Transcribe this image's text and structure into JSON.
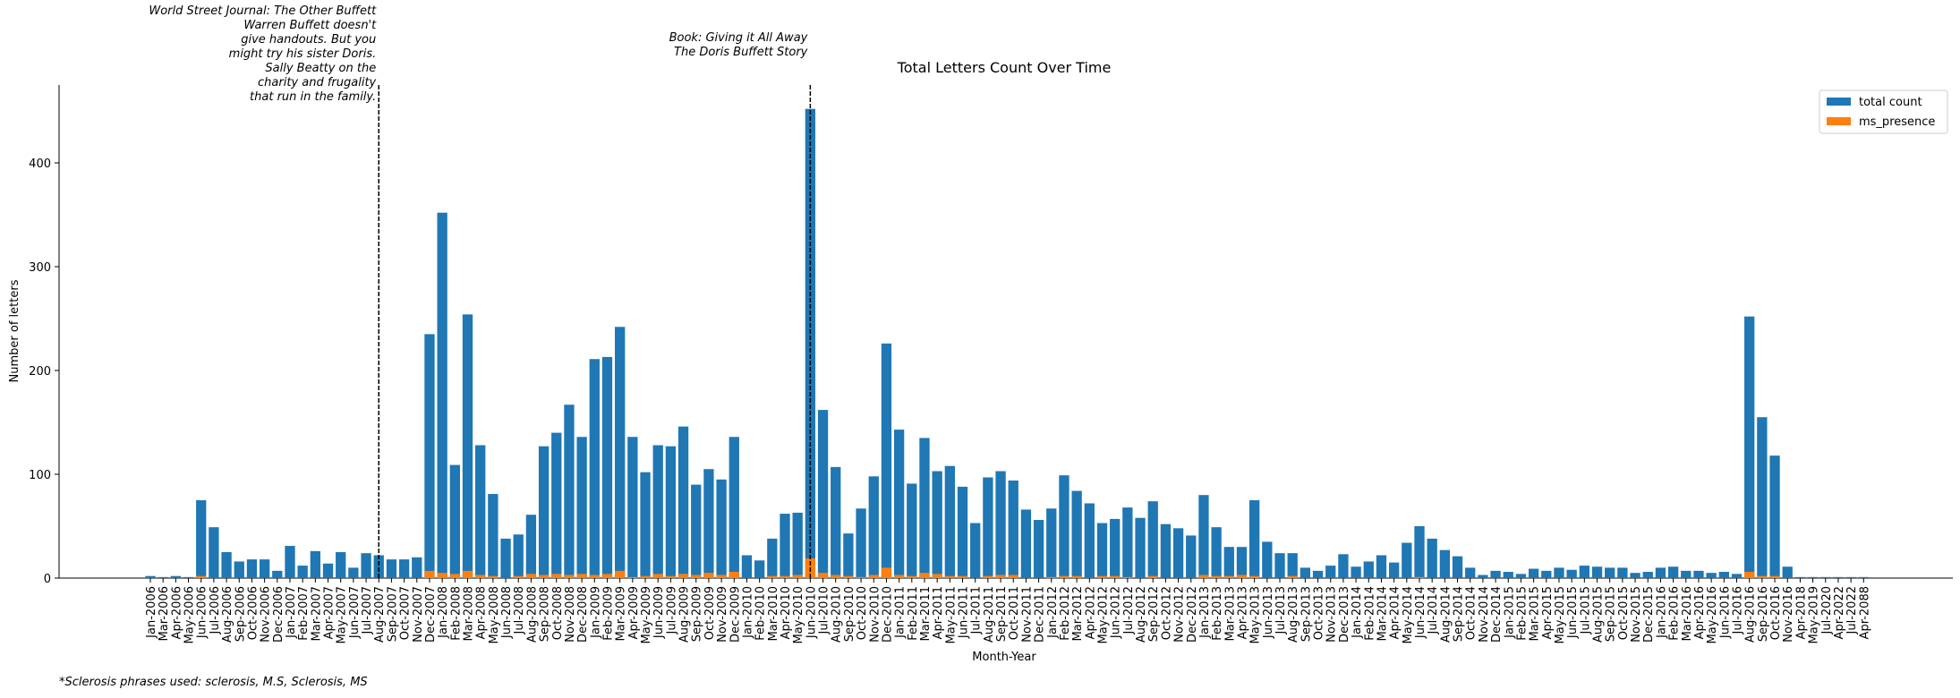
{
  "chart_data": {
    "type": "bar",
    "title": "Total Letters Count Over Time",
    "x_label": "Month-Year",
    "y_label": "Number of letters",
    "footnote": "*Sclerosis phrases used: sclerosis, M.S, Sclerosis, MS",
    "legend": "upper right",
    "categories": [
      "Jan-2006",
      "Mar-2006",
      "Apr-2006",
      "May-2006",
      "Jun-2006",
      "Jul-2006",
      "Aug-2006",
      "Sep-2006",
      "Oct-2006",
      "Nov-2006",
      "Dec-2006",
      "Jan-2007",
      "Feb-2007",
      "Mar-2007",
      "Apr-2007",
      "May-2007",
      "Jun-2007",
      "Jul-2007",
      "Aug-2007",
      "Sep-2007",
      "Oct-2007",
      "Nov-2007",
      "Dec-2007",
      "Jan-2008",
      "Feb-2008",
      "Mar-2008",
      "Apr-2008",
      "May-2008",
      "Jun-2008",
      "Jul-2008",
      "Aug-2008",
      "Sep-2008",
      "Oct-2008",
      "Nov-2008",
      "Dec-2008",
      "Jan-2009",
      "Feb-2009",
      "Mar-2009",
      "Apr-2009",
      "May-2009",
      "Jun-2009",
      "Jul-2009",
      "Aug-2009",
      "Sep-2009",
      "Oct-2009",
      "Nov-2009",
      "Dec-2009",
      "Jan-2010",
      "Feb-2010",
      "Mar-2010",
      "Apr-2010",
      "May-2010",
      "Jun-2010",
      "Jul-2010",
      "Aug-2010",
      "Sep-2010",
      "Oct-2010",
      "Nov-2010",
      "Dec-2010",
      "Jan-2011",
      "Feb-2011",
      "Mar-2011",
      "Apr-2011",
      "May-2011",
      "Jun-2011",
      "Jul-2011",
      "Aug-2011",
      "Sep-2011",
      "Oct-2011",
      "Nov-2011",
      "Dec-2011",
      "Jan-2012",
      "Feb-2012",
      "Mar-2012",
      "Apr-2012",
      "May-2012",
      "Jun-2012",
      "Jul-2012",
      "Aug-2012",
      "Sep-2012",
      "Oct-2012",
      "Nov-2012",
      "Dec-2012",
      "Jan-2013",
      "Feb-2013",
      "Mar-2013",
      "Apr-2013",
      "May-2013",
      "Jun-2013",
      "Jul-2013",
      "Aug-2013",
      "Sep-2013",
      "Oct-2013",
      "Nov-2013",
      "Dec-2013",
      "Jan-2014",
      "Feb-2014",
      "Mar-2014",
      "Apr-2014",
      "May-2014",
      "Jun-2014",
      "Jul-2014",
      "Aug-2014",
      "Sep-2014",
      "Oct-2014",
      "Nov-2014",
      "Dec-2014",
      "Jan-2015",
      "Feb-2015",
      "Mar-2015",
      "Apr-2015",
      "May-2015",
      "Jun-2015",
      "Jul-2015",
      "Aug-2015",
      "Sep-2015",
      "Oct-2015",
      "Nov-2015",
      "Dec-2015",
      "Jan-2016",
      "Feb-2016",
      "Mar-2016",
      "Apr-2016",
      "May-2016",
      "Jun-2016",
      "Jul-2016",
      "Aug-2016",
      "Sep-2016",
      "Oct-2016",
      "Nov-2016",
      "Apr-2018",
      "May-2019",
      "Jul-2020",
      "Apr-2022",
      "Jul-2022",
      "Apr-2088"
    ],
    "series": [
      {
        "name": "total count",
        "color": "#1f77b4",
        "values": [
          2,
          1,
          2,
          1,
          75,
          49,
          25,
          16,
          18,
          18,
          7,
          31,
          12,
          26,
          14,
          25,
          10,
          24,
          22,
          18,
          18,
          20,
          235,
          352,
          109,
          254,
          128,
          81,
          38,
          42,
          61,
          127,
          140,
          167,
          136,
          211,
          213,
          242,
          136,
          102,
          128,
          127,
          146,
          90,
          105,
          95,
          136,
          22,
          17,
          38,
          62,
          63,
          452,
          162,
          107,
          43,
          67,
          98,
          226,
          143,
          91,
          135,
          103,
          108,
          88,
          53,
          97,
          103,
          94,
          66,
          56,
          67,
          99,
          84,
          72,
          53,
          57,
          68,
          58,
          74,
          52,
          48,
          41,
          80,
          49,
          30,
          30,
          75,
          35,
          24,
          24,
          10,
          7,
          12,
          23,
          11,
          16,
          22,
          15,
          34,
          50,
          38,
          27,
          21,
          10,
          3,
          7,
          6,
          4,
          9,
          7,
          10,
          8,
          12,
          11,
          10,
          10,
          5,
          6,
          10,
          11,
          7,
          7,
          5,
          6,
          4,
          252,
          155,
          118,
          11,
          1,
          1,
          1,
          1,
          1,
          1
        ]
      },
      {
        "name": "ms_presence",
        "color": "#ff7f0e",
        "values": [
          0,
          0,
          0,
          0,
          2,
          0,
          0,
          0,
          0,
          0,
          0,
          0,
          0,
          0,
          0,
          0,
          0,
          0,
          0,
          0,
          0,
          0,
          7,
          5,
          4,
          7,
          3,
          2,
          0,
          2,
          4,
          3,
          4,
          3,
          4,
          3,
          4,
          7,
          1,
          2,
          4,
          2,
          4,
          3,
          5,
          3,
          6,
          0,
          0,
          2,
          2,
          3,
          19,
          5,
          3,
          2,
          1,
          3,
          10,
          3,
          2,
          5,
          4,
          2,
          2,
          0,
          2,
          3,
          3,
          0,
          0,
          1,
          2,
          2,
          0,
          2,
          2,
          1,
          0,
          2,
          0,
          0,
          0,
          3,
          2,
          2,
          3,
          2,
          0,
          0,
          2,
          0,
          0,
          0,
          0,
          0,
          0,
          0,
          0,
          0,
          1,
          0,
          0,
          0,
          0,
          0,
          0,
          0,
          0,
          0,
          0,
          0,
          0,
          0,
          0,
          0,
          0,
          0,
          0,
          0,
          0,
          0,
          0,
          0,
          0,
          0,
          6,
          2,
          2,
          0,
          0,
          0,
          0,
          0,
          0,
          0
        ]
      }
    ],
    "ylim": [
      0,
      475
    ],
    "yticks": [
      0,
      100,
      200,
      300,
      400
    ],
    "annotations": [
      {
        "category": "Aug-2007",
        "lines": [
          "World Street Journal: The Other Buffett",
          "Warren Buffett doesn't",
          "give handouts. But you",
          "might try his sister Doris.",
          "Sally Beatty on the",
          "charity and frugality",
          "that run in the family."
        ]
      },
      {
        "category": "Jun-2010",
        "lines": [
          "Book: Giving it All Away",
          "The Doris Buffett Story"
        ]
      }
    ]
  }
}
